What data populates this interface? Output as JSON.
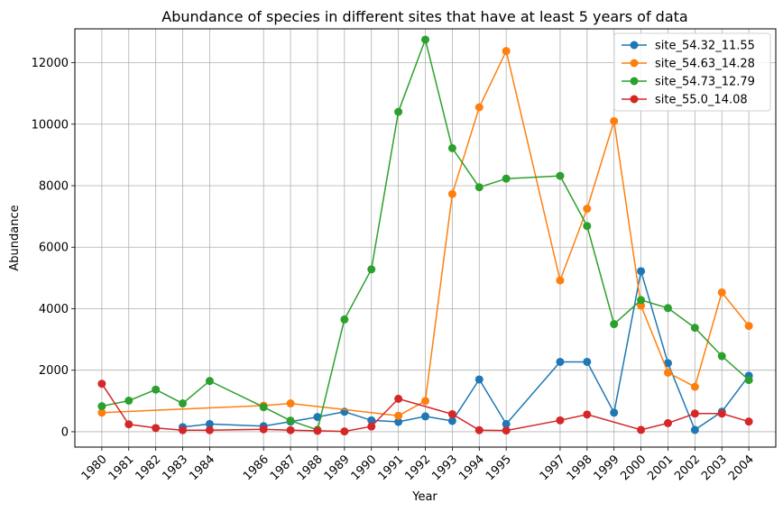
{
  "chart_data": {
    "type": "line",
    "title": "Abundance of species in different sites that have at least 5 years of data",
    "xlabel": "Year",
    "ylabel": "Abundance",
    "xlim": [
      1979,
      2005
    ],
    "ylim": [
      -500,
      13100
    ],
    "x_ticks": [
      1980,
      1981,
      1982,
      1983,
      1984,
      1986,
      1987,
      1988,
      1989,
      1990,
      1991,
      1992,
      1993,
      1994,
      1995,
      1997,
      1998,
      1999,
      2000,
      2001,
      2002,
      2003,
      2004
    ],
    "y_ticks": [
      0,
      2000,
      4000,
      6000,
      8000,
      10000,
      12000
    ],
    "grid": true,
    "legend_position": "top-right",
    "series": [
      {
        "name": "site_54.32_11.55",
        "color": "#1f77b4",
        "x": [
          1983,
          1984,
          1986,
          1987,
          1988,
          1989,
          1990,
          1991,
          1992,
          1993,
          1994,
          1995,
          1997,
          1998,
          1999,
          2000,
          2001,
          2002,
          2003,
          2004
        ],
        "y": [
          150,
          250,
          180,
          330,
          480,
          650,
          370,
          320,
          500,
          350,
          1700,
          250,
          2270,
          2270,
          620,
          5220,
          2230,
          60,
          650,
          1820
        ]
      },
      {
        "name": "site_54.63_14.28",
        "color": "#ff7f0e",
        "x": [
          1980,
          1986,
          1987,
          1991,
          1992,
          1993,
          1994,
          1995,
          1997,
          1998,
          1999,
          2000,
          2001,
          2002,
          2003,
          2004
        ],
        "y": [
          620,
          850,
          920,
          520,
          1000,
          7730,
          10550,
          12380,
          4920,
          7250,
          10100,
          4100,
          1920,
          1460,
          4530,
          3440
        ]
      },
      {
        "name": "site_54.73_12.79",
        "color": "#2ca02c",
        "x": [
          1980,
          1981,
          1982,
          1983,
          1984,
          1986,
          1987,
          1988,
          1989,
          1990,
          1991,
          1992,
          1993,
          1994,
          1995,
          1997,
          1998,
          1999,
          2000,
          2001,
          2002,
          2003,
          2004
        ],
        "y": [
          830,
          1010,
          1370,
          920,
          1650,
          800,
          360,
          60,
          3650,
          5280,
          10400,
          12750,
          9220,
          7950,
          8230,
          8320,
          6690,
          3500,
          4280,
          4020,
          3380,
          2460,
          1680
        ]
      },
      {
        "name": "site_55.0_14.08",
        "color": "#d62728",
        "x": [
          1980,
          1981,
          1982,
          1983,
          1984,
          1986,
          1987,
          1988,
          1989,
          1990,
          1991,
          1993,
          1994,
          1995,
          1997,
          1998,
          2000,
          2001,
          2002,
          2003,
          2004
        ],
        "y": [
          1560,
          240,
          120,
          50,
          50,
          80,
          50,
          30,
          10,
          170,
          1070,
          570,
          50,
          40,
          370,
          560,
          60,
          280,
          590,
          590,
          330
        ]
      }
    ]
  }
}
